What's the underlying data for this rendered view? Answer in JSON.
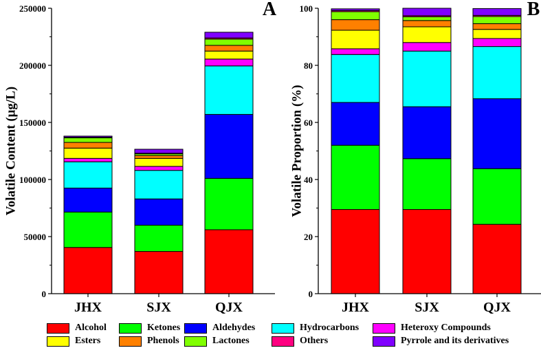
{
  "chart_data": [
    {
      "panel_label": "A",
      "type": "bar",
      "stacked": true,
      "categories": [
        "JHX",
        "SJX",
        "QJX"
      ],
      "ylabel": "Volatile Content (μg/L)",
      "xlabel": "",
      "ylim": [
        0,
        250000
      ],
      "yticks": [
        0,
        50000,
        100000,
        150000,
        200000,
        250000
      ],
      "ytick_labels": [
        "0",
        "50000",
        "100000",
        "150000",
        "200000",
        "250000"
      ],
      "series": [
        {
          "name": "Alcohol",
          "values": [
            40500,
            37000,
            56000
          ]
        },
        {
          "name": "Ketones",
          "values": [
            31000,
            23000,
            45000
          ]
        },
        {
          "name": "Aldehydes",
          "values": [
            21000,
            23000,
            56000
          ]
        },
        {
          "name": "Hydrocarbons",
          "values": [
            23000,
            25000,
            42500
          ]
        },
        {
          "name": "Heteroxy Compounds",
          "values": [
            3000,
            3500,
            6000
          ]
        },
        {
          "name": "Esters",
          "values": [
            9000,
            7000,
            7000
          ]
        },
        {
          "name": "Phenols",
          "values": [
            5000,
            2500,
            5000
          ]
        },
        {
          "name": "Lactones",
          "values": [
            4000,
            1500,
            5500
          ]
        },
        {
          "name": "Others",
          "values": [
            500,
            500,
            1000
          ]
        },
        {
          "name": "Pyrrole and its derivatives",
          "values": [
            1000,
            3500,
            5000
          ]
        }
      ]
    },
    {
      "panel_label": "B",
      "type": "bar",
      "stacked": true,
      "categories": [
        "JHX",
        "SJX",
        "QJX"
      ],
      "ylabel": "Volatile Proportion (%)",
      "xlabel": "",
      "ylim": [
        0,
        100
      ],
      "yticks": [
        0,
        20,
        40,
        60,
        80,
        100
      ],
      "ytick_labels": [
        "0",
        "20",
        "40",
        "60",
        "80",
        "100"
      ],
      "series": [
        {
          "name": "Alcohol",
          "values": [
            29.5,
            29.5,
            24.3
          ]
        },
        {
          "name": "Ketones",
          "values": [
            22.5,
            17.8,
            19.5
          ]
        },
        {
          "name": "Aldehydes",
          "values": [
            15.0,
            18.2,
            24.5
          ]
        },
        {
          "name": "Hydrocarbons",
          "values": [
            16.8,
            19.5,
            18.3
          ]
        },
        {
          "name": "Heteroxy Compounds",
          "values": [
            2.0,
            3.0,
            2.8
          ]
        },
        {
          "name": "Esters",
          "values": [
            6.5,
            5.5,
            3.2
          ]
        },
        {
          "name": "Phenols",
          "values": [
            3.7,
            2.2,
            2.0
          ]
        },
        {
          "name": "Lactones",
          "values": [
            2.8,
            1.3,
            2.5
          ]
        },
        {
          "name": "Others",
          "values": [
            0.4,
            0.4,
            0.4
          ]
        },
        {
          "name": "Pyrrole and its derivatives",
          "values": [
            0.6,
            2.6,
            2.4
          ]
        }
      ]
    }
  ],
  "legend": {
    "placement": "bottom",
    "items": [
      {
        "label": "Alcohol",
        "color": "#ff0000"
      },
      {
        "label": "Ketones",
        "color": "#00ff00"
      },
      {
        "label": "Aldehydes",
        "color": "#0000ff"
      },
      {
        "label": "Hydrocarbons",
        "color": "#00ffff"
      },
      {
        "label": "Heteroxy Compounds",
        "color": "#ff00ff"
      },
      {
        "label": "Esters",
        "color": "#ffff00"
      },
      {
        "label": "Phenols",
        "color": "#ff8000"
      },
      {
        "label": "Lactones",
        "color": "#80ff00"
      },
      {
        "label": "Others",
        "color": "#ff0080"
      },
      {
        "label": "Pyrrole and its derivatives",
        "color": "#8000ff"
      }
    ]
  }
}
